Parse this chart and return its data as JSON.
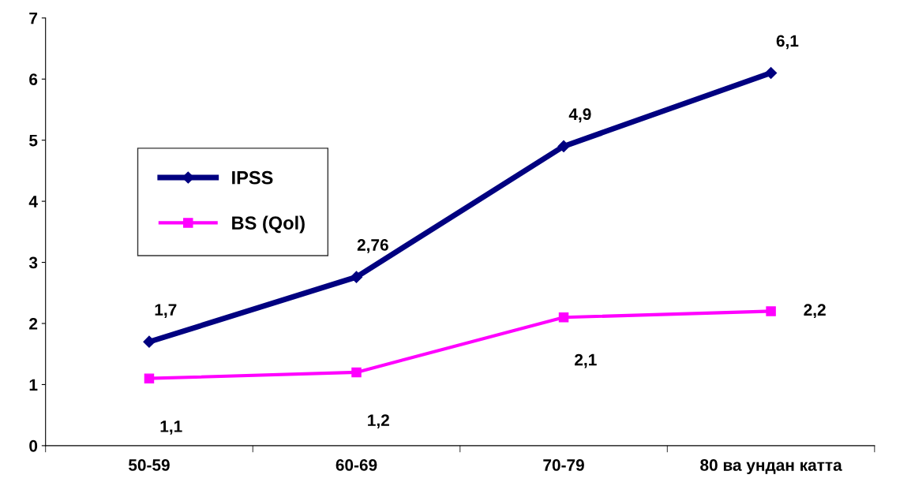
{
  "chart_data": {
    "type": "line",
    "categories": [
      "50-59",
      "60-69",
      "70-79",
      "80 ва ундан катта"
    ],
    "series": [
      {
        "name": "IPSS",
        "color": "#000080",
        "marker": "diamond",
        "values": [
          1.7,
          2.76,
          4.9,
          6.1
        ],
        "value_labels": [
          "1,7",
          "2,76",
          "4,9",
          "6,1"
        ]
      },
      {
        "name": "BS (Qol)",
        "color": "#ff00ff",
        "marker": "square",
        "values": [
          1.1,
          1.2,
          2.1,
          2.2
        ],
        "value_labels": [
          "1,1",
          "1,2",
          "2,1",
          "2,2"
        ]
      }
    ],
    "ylim": [
      0,
      7
    ],
    "yticks": [
      0,
      1,
      2,
      3,
      4,
      5,
      6,
      7
    ],
    "grid": false,
    "legend": "left"
  }
}
